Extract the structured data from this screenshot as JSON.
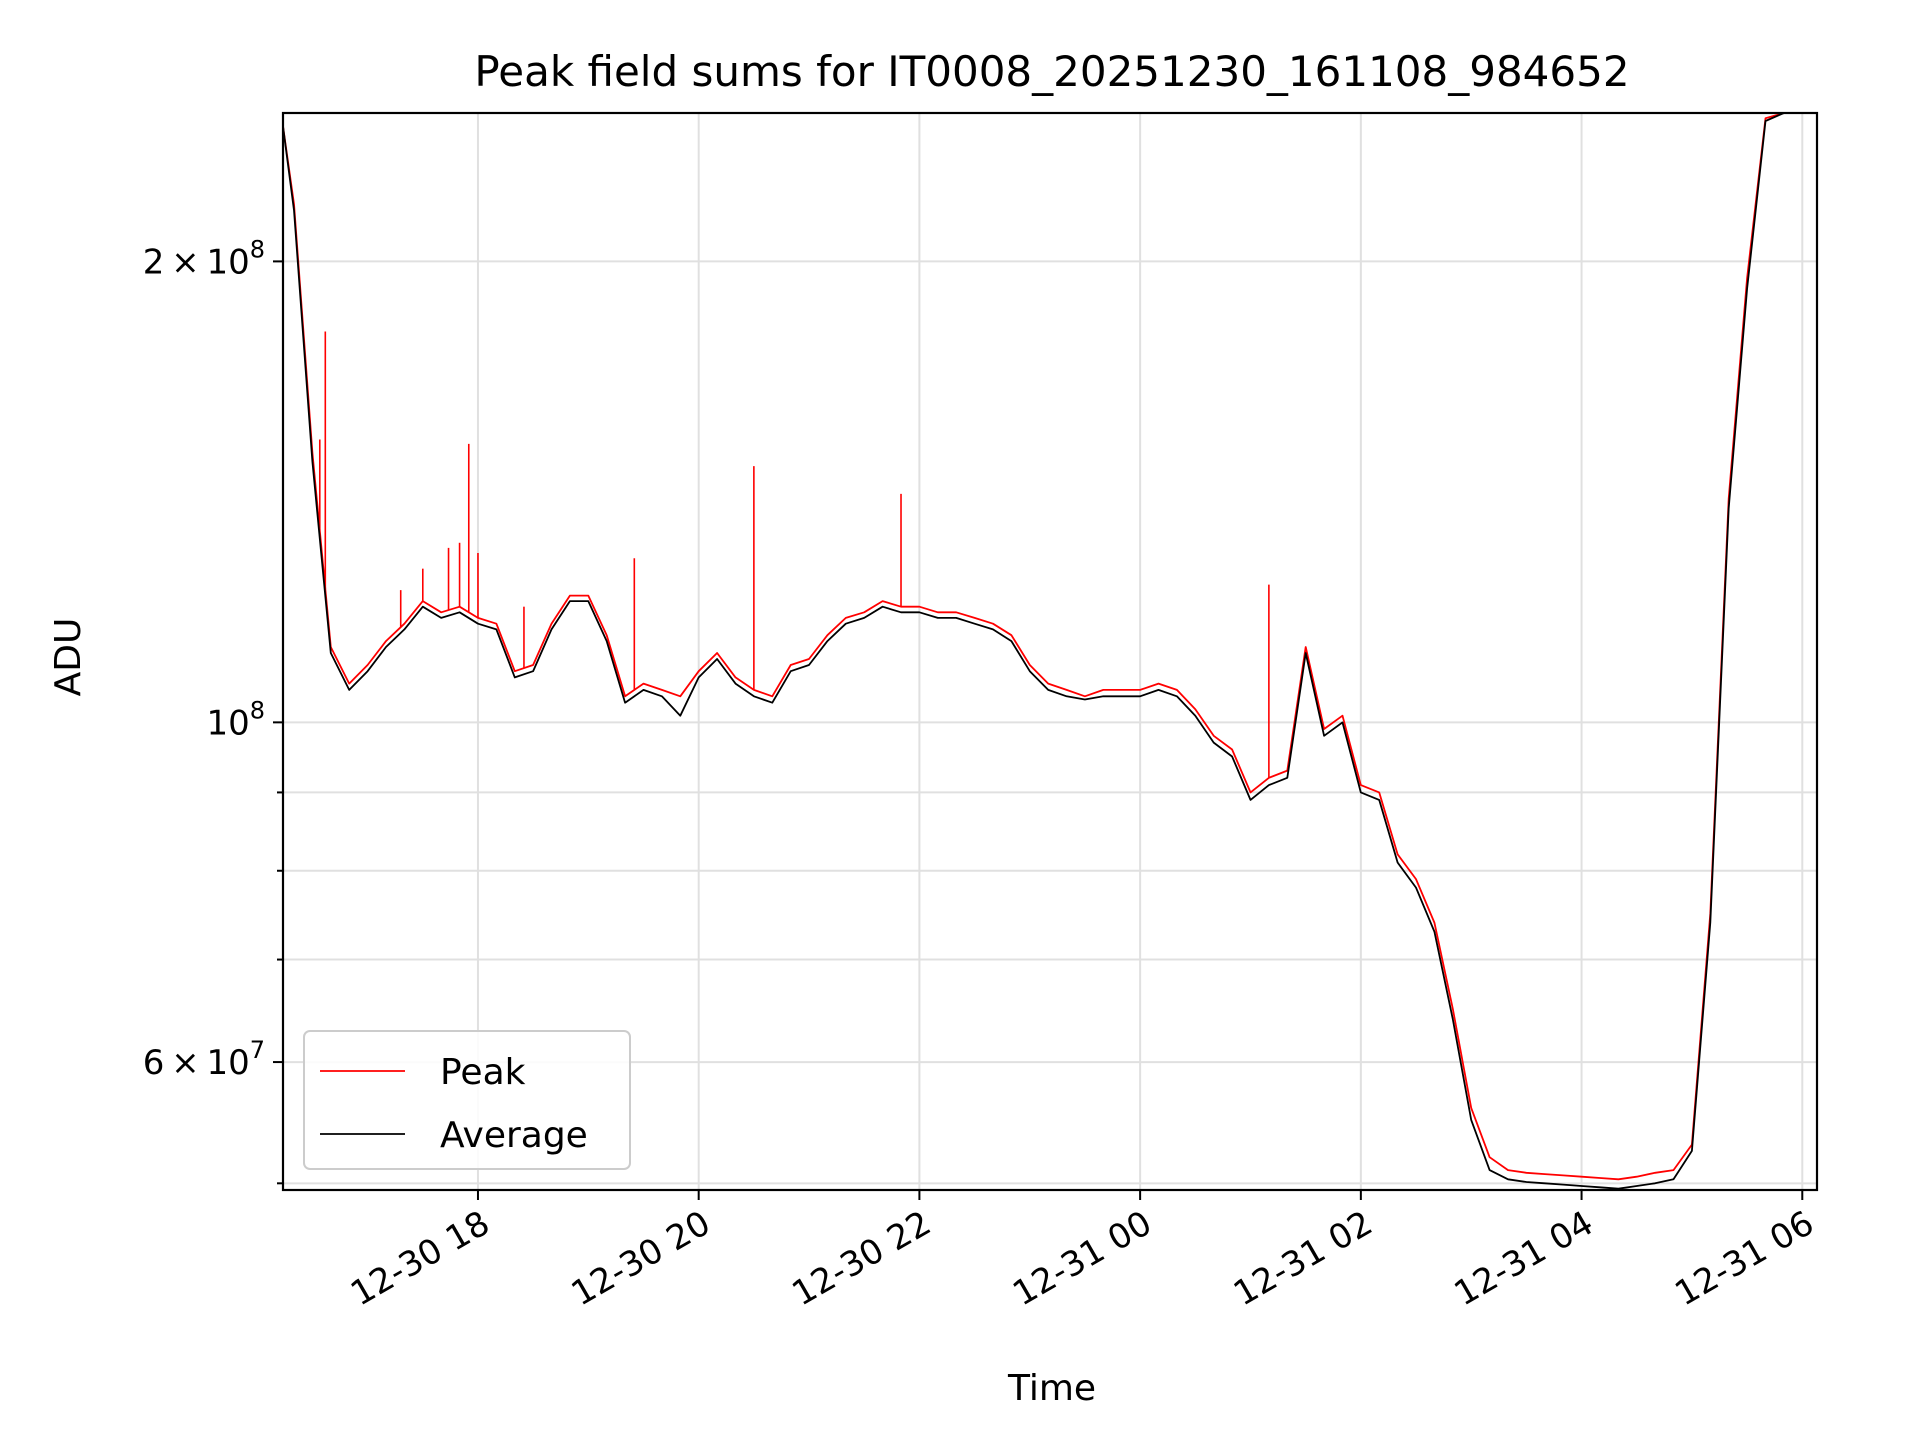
{
  "chart_data": {
    "type": "line",
    "title": "Peak field sums for IT0008_20251230_161108_984652",
    "xlabel": "Time",
    "ylabel": "ADU",
    "yscale": "log",
    "ylim": [
      49500000,
      250000000
    ],
    "xlim": [
      "2025-12-30 16:14",
      "2025-12-31 06:08"
    ],
    "grid": true,
    "legend_position": "lower-left",
    "x_ticks": [
      "12-30 18",
      "12-30 20",
      "12-30 22",
      "12-31 00",
      "12-31 02",
      "12-31 04",
      "12-31 06"
    ],
    "x_tick_values": [
      "2025-12-30 18:00",
      "2025-12-30 20:00",
      "2025-12-30 22:00",
      "2025-12-31 00:00",
      "2025-12-31 02:00",
      "2025-12-31 04:00",
      "2025-12-31 06:00"
    ],
    "y_major_ticks": [
      {
        "value": 60000000,
        "mantissa": "6",
        "exp": "7"
      },
      {
        "value": 100000000,
        "mantissa": "",
        "exp": "8"
      },
      {
        "value": 200000000,
        "mantissa": "2",
        "exp": "8"
      }
    ],
    "y_minor_ticks": [
      50000000,
      70000000,
      80000000,
      90000000
    ],
    "series": [
      {
        "name": "Peak",
        "color": "#ff0000",
        "x": [
          "2025-12-30 16:14",
          "2025-12-30 16:20",
          "2025-12-30 16:30",
          "2025-12-30 16:40",
          "2025-12-30 16:50",
          "2025-12-30 17:00",
          "2025-12-30 17:10",
          "2025-12-30 17:20",
          "2025-12-30 17:30",
          "2025-12-30 17:40",
          "2025-12-30 17:50",
          "2025-12-30 18:00",
          "2025-12-30 18:10",
          "2025-12-30 18:20",
          "2025-12-30 18:30",
          "2025-12-30 18:40",
          "2025-12-30 18:50",
          "2025-12-30 19:00",
          "2025-12-30 19:10",
          "2025-12-30 19:20",
          "2025-12-30 19:30",
          "2025-12-30 19:40",
          "2025-12-30 19:50",
          "2025-12-30 20:00",
          "2025-12-30 20:10",
          "2025-12-30 20:20",
          "2025-12-30 20:30",
          "2025-12-30 20:40",
          "2025-12-30 20:50",
          "2025-12-30 21:00",
          "2025-12-30 21:10",
          "2025-12-30 21:20",
          "2025-12-30 21:30",
          "2025-12-30 21:40",
          "2025-12-30 21:50",
          "2025-12-30 22:00",
          "2025-12-30 22:10",
          "2025-12-30 22:20",
          "2025-12-30 22:30",
          "2025-12-30 22:40",
          "2025-12-30 22:50",
          "2025-12-30 23:00",
          "2025-12-30 23:10",
          "2025-12-30 23:20",
          "2025-12-30 23:30",
          "2025-12-30 23:40",
          "2025-12-30 23:50",
          "2025-12-31 00:00",
          "2025-12-31 00:10",
          "2025-12-31 00:20",
          "2025-12-31 00:30",
          "2025-12-31 00:40",
          "2025-12-31 00:50",
          "2025-12-31 01:00",
          "2025-12-31 01:10",
          "2025-12-31 01:20",
          "2025-12-31 01:30",
          "2025-12-31 01:40",
          "2025-12-31 01:50",
          "2025-12-31 02:00",
          "2025-12-31 02:10",
          "2025-12-31 02:20",
          "2025-12-31 02:30",
          "2025-12-31 02:40",
          "2025-12-31 02:50",
          "2025-12-31 03:00",
          "2025-12-31 03:10",
          "2025-12-31 03:20",
          "2025-12-31 03:30",
          "2025-12-31 03:40",
          "2025-12-31 03:50",
          "2025-12-31 04:00",
          "2025-12-31 04:10",
          "2025-12-31 04:20",
          "2025-12-31 04:30",
          "2025-12-31 04:40",
          "2025-12-31 04:50",
          "2025-12-31 05:00",
          "2025-12-31 05:10",
          "2025-12-31 05:20",
          "2025-12-31 05:30",
          "2025-12-31 05:40",
          "2025-12-31 05:50",
          "2025-12-31 05:58"
        ],
        "y": [
          245000000,
          218000000,
          150000000,
          112000000,
          106000000,
          109000000,
          113000000,
          116000000,
          120000000,
          118000000,
          119000000,
          117000000,
          116000000,
          108000000,
          109000000,
          116000000,
          121000000,
          121000000,
          114000000,
          104000000,
          106000000,
          105000000,
          104000000,
          108000000,
          111000000,
          107000000,
          105000000,
          104000000,
          109000000,
          110000000,
          114000000,
          117000000,
          118000000,
          120000000,
          119000000,
          119000000,
          118000000,
          118000000,
          117000000,
          116000000,
          114000000,
          109000000,
          106000000,
          105000000,
          104000000,
          105000000,
          105000000,
          105000000,
          106000000,
          105000000,
          102000000,
          98000000,
          96000000,
          90000000,
          92000000,
          93000000,
          112000000,
          99000000,
          101000000,
          91000000,
          90000000,
          82000000,
          79000000,
          74000000,
          65000000,
          56000000,
          52000000,
          51000000,
          50800000,
          50700000,
          50600000,
          50500000,
          50400000,
          50300000,
          50500000,
          50800000,
          51000000,
          53000000,
          75000000,
          140000000,
          195000000,
          248000000,
          250000000,
          250000000
        ]
      },
      {
        "name": "Average",
        "color": "#000000",
        "x": [
          "2025-12-30 16:14",
          "2025-12-30 16:20",
          "2025-12-30 16:30",
          "2025-12-30 16:40",
          "2025-12-30 16:50",
          "2025-12-30 17:00",
          "2025-12-30 17:10",
          "2025-12-30 17:20",
          "2025-12-30 17:30",
          "2025-12-30 17:40",
          "2025-12-30 17:50",
          "2025-12-30 18:00",
          "2025-12-30 18:10",
          "2025-12-30 18:20",
          "2025-12-30 18:30",
          "2025-12-30 18:40",
          "2025-12-30 18:50",
          "2025-12-30 19:00",
          "2025-12-30 19:10",
          "2025-12-30 19:20",
          "2025-12-30 19:30",
          "2025-12-30 19:40",
          "2025-12-30 19:50",
          "2025-12-30 20:00",
          "2025-12-30 20:10",
          "2025-12-30 20:20",
          "2025-12-30 20:30",
          "2025-12-30 20:40",
          "2025-12-30 20:50",
          "2025-12-30 21:00",
          "2025-12-30 21:10",
          "2025-12-30 21:20",
          "2025-12-30 21:30",
          "2025-12-30 21:40",
          "2025-12-30 21:50",
          "2025-12-30 22:00",
          "2025-12-30 22:10",
          "2025-12-30 22:20",
          "2025-12-30 22:30",
          "2025-12-30 22:40",
          "2025-12-30 22:50",
          "2025-12-30 23:00",
          "2025-12-30 23:10",
          "2025-12-30 23:20",
          "2025-12-30 23:30",
          "2025-12-30 23:40",
          "2025-12-30 23:50",
          "2025-12-31 00:00",
          "2025-12-31 00:10",
          "2025-12-31 00:20",
          "2025-12-31 00:30",
          "2025-12-31 00:40",
          "2025-12-31 00:50",
          "2025-12-31 01:00",
          "2025-12-31 01:10",
          "2025-12-31 01:20",
          "2025-12-31 01:30",
          "2025-12-31 01:40",
          "2025-12-31 01:50",
          "2025-12-31 02:00",
          "2025-12-31 02:10",
          "2025-12-31 02:20",
          "2025-12-31 02:30",
          "2025-12-31 02:40",
          "2025-12-31 02:50",
          "2025-12-31 03:00",
          "2025-12-31 03:10",
          "2025-12-31 03:20",
          "2025-12-31 03:30",
          "2025-12-31 03:40",
          "2025-12-31 03:50",
          "2025-12-31 04:00",
          "2025-12-31 04:10",
          "2025-12-31 04:20",
          "2025-12-31 04:30",
          "2025-12-31 04:40",
          "2025-12-31 04:50",
          "2025-12-31 05:00",
          "2025-12-31 05:10",
          "2025-12-31 05:20",
          "2025-12-31 05:30",
          "2025-12-31 05:40",
          "2025-12-31 05:50",
          "2025-12-31 05:58"
        ],
        "y": [
          245000000,
          216000000,
          148000000,
          111000000,
          105000000,
          108000000,
          112000000,
          115000000,
          119000000,
          117000000,
          118000000,
          116000000,
          115000000,
          107000000,
          108000000,
          115000000,
          120000000,
          120000000,
          113000000,
          103000000,
          105000000,
          104000000,
          101000000,
          107000000,
          110000000,
          106000000,
          104000000,
          103000000,
          108000000,
          109000000,
          113000000,
          116000000,
          117000000,
          119000000,
          118000000,
          118000000,
          117000000,
          117000000,
          116000000,
          115000000,
          113000000,
          108000000,
          105000000,
          104000000,
          103500000,
          104000000,
          104000000,
          104000000,
          105000000,
          104000000,
          101000000,
          97000000,
          95000000,
          89000000,
          91000000,
          92000000,
          111000000,
          98000000,
          100000000,
          90000000,
          89000000,
          81000000,
          78000000,
          73000000,
          64000000,
          55000000,
          51000000,
          50300000,
          50100000,
          50000000,
          49900000,
          49800000,
          49700000,
          49600000,
          49800000,
          50000000,
          50300000,
          52500000,
          74000000,
          138000000,
          192000000,
          247000000,
          250000000,
          250000000
        ]
      }
    ],
    "annotations": [
      {
        "series": "Peak",
        "type": "spikes",
        "x": [
          "2025-12-30 16:34",
          "2025-12-30 16:37",
          "2025-12-30 17:18",
          "2025-12-30 17:30",
          "2025-12-30 17:44",
          "2025-12-30 17:50",
          "2025-12-30 17:55",
          "2025-12-30 18:00",
          "2025-12-30 18:25",
          "2025-12-30 19:25",
          "2025-12-30 20:30",
          "2025-12-30 21:50",
          "2025-12-31 01:10"
        ],
        "y": [
          153000000,
          180000000,
          122000000,
          126000000,
          130000000,
          131000000,
          152000000,
          129000000,
          119000000,
          128000000,
          147000000,
          141000000,
          123000000
        ]
      }
    ]
  }
}
